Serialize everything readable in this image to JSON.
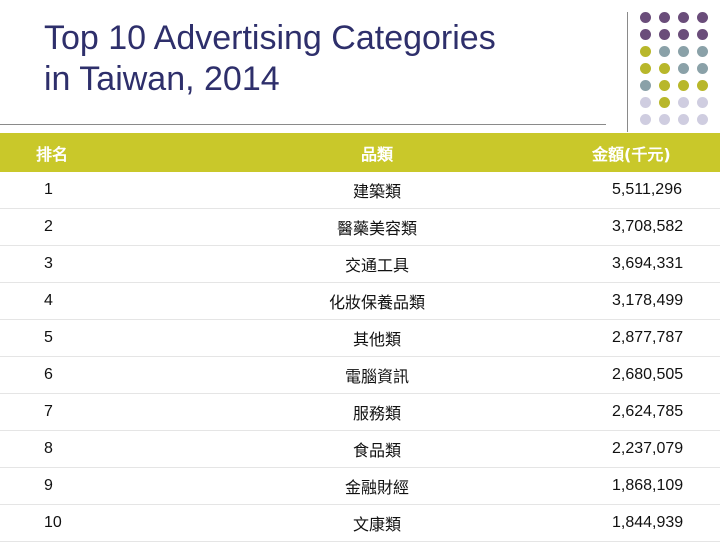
{
  "slide": {
    "title_line1": "Top 10 Advertising Categories",
    "title_line2": "in Taiwan, 2014"
  },
  "table": {
    "headers": {
      "rank": "排名",
      "category": "品類",
      "amount": "金額(千元)"
    },
    "rows": [
      {
        "rank": "1",
        "category": "建築類",
        "amount": "5,511,296"
      },
      {
        "rank": "2",
        "category": "醫藥美容類",
        "amount": "3,708,582"
      },
      {
        "rank": "3",
        "category": "交通工具",
        "amount": "3,694,331"
      },
      {
        "rank": "4",
        "category": "化妝保養品類",
        "amount": "3,178,499"
      },
      {
        "rank": "5",
        "category": "其他類",
        "amount": "2,877,787"
      },
      {
        "rank": "6",
        "category": "電腦資訊",
        "amount": "2,680,505"
      },
      {
        "rank": "7",
        "category": "服務類",
        "amount": "2,624,785"
      },
      {
        "rank": "8",
        "category": "食品類",
        "amount": "2,237,079"
      },
      {
        "rank": "9",
        "category": "金融財經",
        "amount": "1,868,109"
      },
      {
        "rank": "10",
        "category": "文康類",
        "amount": "1,844,939"
      }
    ]
  },
  "colors": {
    "header_bg": "#c9c82a",
    "title": "#2e2f6b",
    "dot_purple": "#6a4d7a",
    "dot_teal": "#8aa1a8",
    "dot_olive": "#b8b72a",
    "dot_lilac": "#cfcde0"
  }
}
